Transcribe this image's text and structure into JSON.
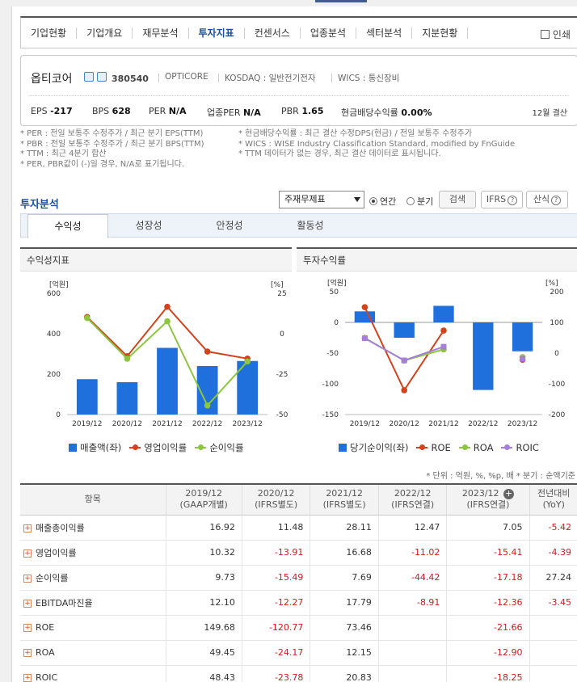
{
  "nav": {
    "items": [
      "기업현황",
      "기업개요",
      "재무분석",
      "투자지표",
      "컨센서스",
      "업종분석",
      "섹터분석",
      "지분현황"
    ],
    "active_index": 3,
    "print_label": "인쇄"
  },
  "company": {
    "name": "옵티코어",
    "code": "380540",
    "eng_name": "OPTICORE",
    "market": "KOSDAQ : 일반전기전자",
    "wics": "WICS : 통신장비",
    "stats": {
      "eps_label": "EPS",
      "eps": "-217",
      "bps_label": "BPS",
      "bps": "628",
      "per_label": "PER",
      "per": "N/A",
      "ind_per_label": "업종PER",
      "ind_per": "N/A",
      "pbr_label": "PBR",
      "pbr": "1.65",
      "div_label": "현금배당수익률",
      "div": "0.00%"
    },
    "settlement": "12월 결산"
  },
  "notes": {
    "left": [
      "* PER : 전일 보통주 수정주가 / 최근 분기 EPS(TTM)",
      "* PBR : 전일 보통주 수정주가 / 최근 분기 BPS(TTM)",
      "* TTM : 최근 4분기 합산",
      "* PER, PBR값이 (-)일 경우, N/A로 표기됩니다."
    ],
    "right": [
      "* 현금배당수익률 : 최근 결산 수정DPS(현금) / 전일 보통주 수정주가",
      "* WICS : WISE Industry Classification Standard, modified by FnGuide",
      "* TTM 데이터가 없는 경우, 최근 결산 데이터로 표시됩니다."
    ]
  },
  "analysis": {
    "title": "투자분석",
    "select_value": "주재무제표",
    "radio_annual": "연간",
    "radio_quarter": "분기",
    "search_btn": "검색",
    "ifrs_btn": "IFRS",
    "formula_btn": "산식",
    "tabs": [
      "수익성",
      "성장성",
      "안정성",
      "활동성"
    ]
  },
  "colors": {
    "bar": "#1f6fdc",
    "line_red": "#d2421b",
    "line_green": "#8cc63f",
    "line_purple": "#a57fd6",
    "negative_text": "#d11b1b"
  },
  "chart_data": [
    {
      "type": "bar",
      "title": "수익성지표",
      "categories": [
        "2019/12",
        "2020/12",
        "2021/12",
        "2022/12",
        "2023/12"
      ],
      "left_unit": "[억원]",
      "right_unit": "[%]",
      "ylim_left": [
        0,
        600
      ],
      "ylim_right": [
        -50,
        25
      ],
      "left_ticks": [
        "600",
        "400",
        "200",
        "0"
      ],
      "right_ticks": [
        "25",
        "0",
        "-25",
        "-50"
      ],
      "series": [
        {
          "name": "매출액(좌)",
          "type": "bar",
          "axis": "left",
          "values": [
            175,
            160,
            330,
            240,
            265
          ]
        },
        {
          "name": "영업이익률",
          "type": "line",
          "axis": "right",
          "values": [
            10.32,
            -13.91,
            16.68,
            -11.02,
            -15.41
          ]
        },
        {
          "name": "순이익률",
          "type": "line",
          "axis": "right",
          "values": [
            9.73,
            -15.49,
            7.69,
            -44.42,
            -17.18
          ]
        }
      ],
      "grid": false,
      "legend": "bottom"
    },
    {
      "type": "bar",
      "title": "투자수익률",
      "categories": [
        "2019/12",
        "2020/12",
        "2021/12",
        "2022/12",
        "2023/12"
      ],
      "left_unit": "[억원]",
      "right_unit": "[%]",
      "ylim_left": [
        -150,
        50
      ],
      "ylim_right": [
        -200,
        200
      ],
      "left_ticks": [
        "50",
        "0",
        "-50",
        "-100",
        "-150"
      ],
      "right_ticks": [
        "200",
        "100",
        "0",
        "-100",
        "-200"
      ],
      "series": [
        {
          "name": "당기순이익(좌)",
          "type": "bar",
          "axis": "left",
          "values": [
            18,
            -25,
            27,
            -110,
            -47
          ]
        },
        {
          "name": "ROE",
          "type": "line",
          "axis": "right",
          "values": [
            149.68,
            -120.77,
            73.46,
            null,
            -21.66
          ]
        },
        {
          "name": "ROA",
          "type": "line",
          "axis": "right",
          "values": [
            49.45,
            -24.17,
            12.15,
            null,
            -12.9
          ]
        },
        {
          "name": "ROIC",
          "type": "line",
          "axis": "right",
          "values": [
            48.43,
            -23.78,
            20.83,
            null,
            -18.25
          ]
        }
      ],
      "grid": false,
      "legend": "bottom"
    }
  ],
  "table": {
    "unit_note": "* 단위 : 억원, %, %p, 배     * 분기 : 순액기준",
    "headers": [
      {
        "top": "항목",
        "bottom": ""
      },
      {
        "top": "2019/12",
        "bottom": "(GAAP개별)"
      },
      {
        "top": "2020/12",
        "bottom": "(IFRS별도)"
      },
      {
        "top": "2021/12",
        "bottom": "(IFRS별도)"
      },
      {
        "top": "2022/12",
        "bottom": "(IFRS연결)"
      },
      {
        "top": "2023/12",
        "bottom": "(IFRS연결)"
      },
      {
        "top": "전년대비",
        "bottom": "(YoY)"
      }
    ],
    "rows": [
      {
        "label": "매출총이익률",
        "cells": [
          "16.92",
          "11.48",
          "28.11",
          "12.47",
          "7.05",
          "-5.42"
        ]
      },
      {
        "label": "영업이익률",
        "cells": [
          "10.32",
          "-13.91",
          "16.68",
          "-11.02",
          "-15.41",
          "-4.39"
        ]
      },
      {
        "label": "순이익률",
        "cells": [
          "9.73",
          "-15.49",
          "7.69",
          "-44.42",
          "-17.18",
          "27.24"
        ]
      },
      {
        "label": "EBITDA마진율",
        "cells": [
          "12.10",
          "-12.27",
          "17.79",
          "-8.91",
          "-12.36",
          "-3.45"
        ]
      },
      {
        "label": "ROE",
        "cells": [
          "149.68",
          "-120.77",
          "73.46",
          "",
          "-21.66",
          ""
        ]
      },
      {
        "label": "ROA",
        "cells": [
          "49.45",
          "-24.17",
          "12.15",
          "",
          "-12.90",
          ""
        ]
      },
      {
        "label": "ROIC",
        "cells": [
          "48.43",
          "-23.78",
          "20.83",
          "",
          "-18.25",
          ""
        ]
      }
    ]
  }
}
